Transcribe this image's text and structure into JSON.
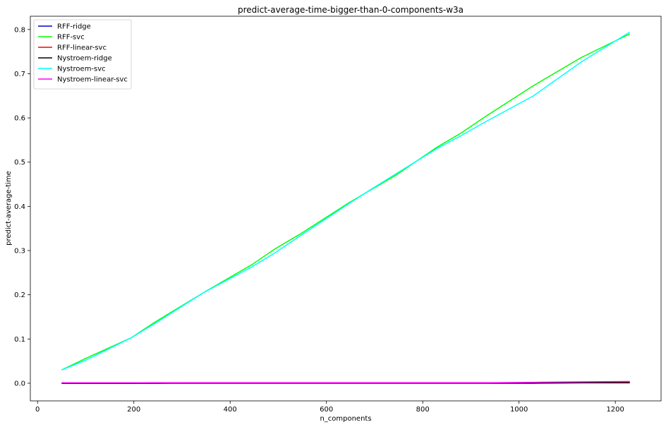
{
  "chart_data": {
    "type": "line",
    "title": "predict-average-time-bigger-than-0-components-w3a",
    "xlabel": "n_components",
    "ylabel": "predict-average-time",
    "xlim": [
      -15,
      1295
    ],
    "ylim": [
      -0.04,
      0.83
    ],
    "xticks": [
      0,
      200,
      400,
      600,
      800,
      1000,
      1200
    ],
    "yticks": [
      0.0,
      0.1,
      0.2,
      0.3,
      0.4,
      0.5,
      0.6,
      0.7,
      0.8
    ],
    "ytick_labels": [
      "0.0",
      "0.1",
      "0.2",
      "0.3",
      "0.4",
      "0.5",
      "0.6",
      "0.7",
      "0.8"
    ],
    "grid": false,
    "legend_position": "upper left",
    "x": [
      50,
      100,
      195,
      245,
      345,
      445,
      495,
      545,
      645,
      695,
      745,
      830,
      880,
      930,
      1030,
      1130,
      1230
    ],
    "series": [
      {
        "name": "RFF-ridge",
        "color": "#0000cc",
        "values": [
          0.0,
          0.0,
          0.0,
          0.0,
          0.001,
          0.001,
          0.001,
          0.001,
          0.001,
          0.001,
          0.001,
          0.001,
          0.001,
          0.001,
          0.001,
          0.002,
          0.002
        ]
      },
      {
        "name": "RFF-svc",
        "color": "#00ff00",
        "values": [
          0.03,
          0.056,
          0.103,
          0.139,
          0.205,
          0.268,
          0.305,
          0.337,
          0.407,
          0.439,
          0.471,
          0.534,
          0.566,
          0.603,
          0.673,
          0.737,
          0.79
        ]
      },
      {
        "name": "RFF-linear-svc",
        "color": "#ff0000",
        "values": [
          0.0,
          0.0,
          0.0,
          0.001,
          0.001,
          0.001,
          0.001,
          0.001,
          0.001,
          0.001,
          0.001,
          0.001,
          0.001,
          0.001,
          0.001,
          0.002,
          0.002
        ]
      },
      {
        "name": "Nystroem-ridge",
        "color": "#000000",
        "values": [
          0.0,
          0.0,
          0.0,
          0.0,
          0.0,
          0.0,
          0.0,
          0.0,
          0.0,
          0.0,
          0.0,
          0.0,
          0.0,
          0.0,
          0.0,
          0.001,
          0.001
        ]
      },
      {
        "name": "Nystroem-svc",
        "color": "#00ffff",
        "values": [
          0.03,
          0.052,
          0.103,
          0.136,
          0.205,
          0.263,
          0.296,
          0.333,
          0.405,
          0.44,
          0.474,
          0.531,
          0.56,
          0.591,
          0.65,
          0.727,
          0.794
        ]
      },
      {
        "name": "Nystroem-linear-svc",
        "color": "#ff00ff",
        "values": [
          0.001,
          0.001,
          0.001,
          0.001,
          0.001,
          0.001,
          0.001,
          0.001,
          0.001,
          0.001,
          0.001,
          0.001,
          0.001,
          0.001,
          0.002,
          0.003,
          0.004
        ]
      }
    ]
  }
}
